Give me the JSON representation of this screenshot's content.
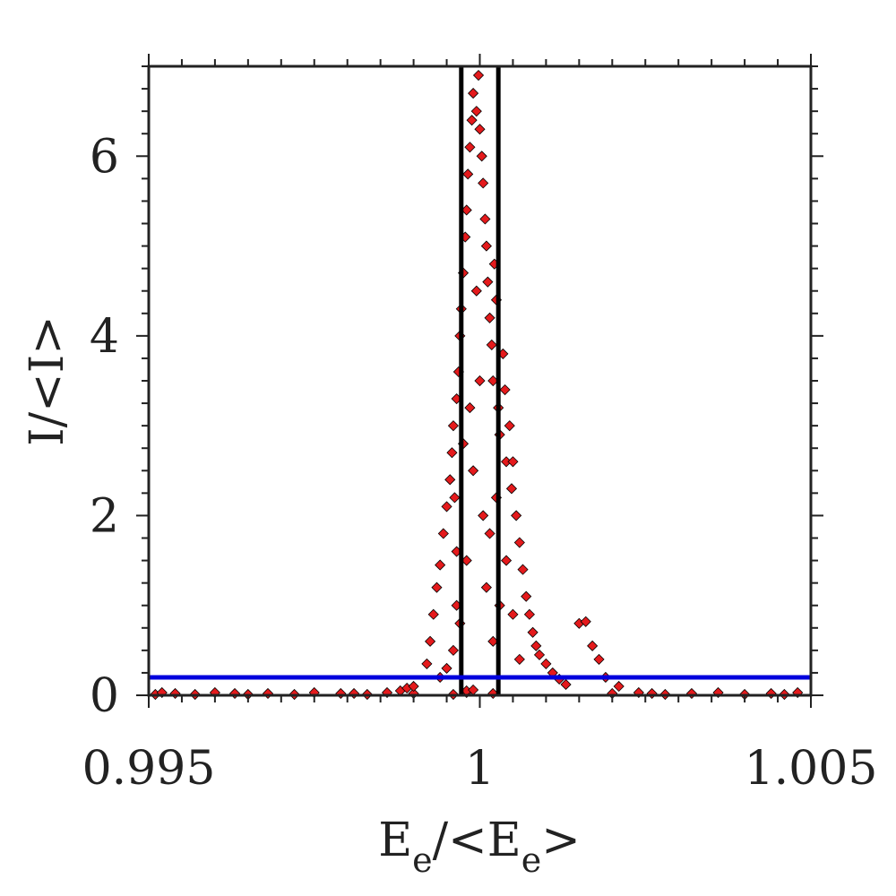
{
  "chart_data": {
    "type": "scatter",
    "title": "",
    "xlabel": {
      "main": "E",
      "sub": "e",
      "mid": "/<E",
      "sub2": "e",
      "end": ">"
    },
    "ylabel": "I/<I>",
    "xlim": [
      0.995,
      1.005
    ],
    "ylim": [
      0,
      7
    ],
    "x_ticks": [
      {
        "value": 0.995,
        "label": "0.995"
      },
      {
        "value": 1.0,
        "label": "1"
      },
      {
        "value": 1.005,
        "label": "1.005"
      }
    ],
    "y_ticks": [
      {
        "value": 0,
        "label": "0"
      },
      {
        "value": 2,
        "label": "2"
      },
      {
        "value": 4,
        "label": "4"
      },
      {
        "value": 6,
        "label": "6"
      }
    ],
    "marker": "diamond",
    "marker_color": "#e41a1c",
    "marker_edge_color": "#000000",
    "points": [
      [
        0.9951,
        0.01
      ],
      [
        0.9954,
        0.02
      ],
      [
        0.9957,
        0.01
      ],
      [
        0.996,
        0.03
      ],
      [
        0.9963,
        0.02
      ],
      [
        0.9968,
        0.02
      ],
      [
        0.9972,
        0.01
      ],
      [
        0.9975,
        0.03
      ],
      [
        0.9979,
        0.02
      ],
      [
        0.9983,
        0.01
      ],
      [
        0.9986,
        0.03
      ],
      [
        0.999,
        0.02
      ],
      [
        0.9996,
        0.01
      ],
      [
        0.9998,
        0.03
      ],
      [
        1.0002,
        0.02
      ],
      [
        0.9998,
        0.05
      ],
      [
        0.9999,
        0.06
      ],
      [
        1.002,
        0.02
      ],
      [
        1.0024,
        0.03
      ],
      [
        1.0028,
        0.01
      ],
      [
        1.0032,
        0.02
      ],
      [
        1.0036,
        0.03
      ],
      [
        1.004,
        0.01
      ],
      [
        1.0044,
        0.02
      ],
      [
        1.0048,
        0.03
      ],
      [
        0.9952,
        0.03
      ],
      [
        0.9965,
        0.01
      ],
      [
        0.9981,
        0.02
      ],
      [
        1.0026,
        0.02
      ],
      [
        1.0046,
        0.01
      ],
      [
        0.9988,
        0.05
      ],
      [
        0.9989,
        0.08
      ],
      [
        0.999,
        0.1
      ],
      [
        0.9992,
        0.35
      ],
      [
        0.99925,
        0.6
      ],
      [
        0.9993,
        0.9
      ],
      [
        0.99935,
        1.2
      ],
      [
        0.9994,
        1.45
      ],
      [
        0.99945,
        1.8
      ],
      [
        0.9995,
        2.1
      ],
      [
        0.99955,
        2.4
      ],
      [
        0.99958,
        2.7
      ],
      [
        0.9996,
        3.0
      ],
      [
        0.99962,
        2.2
      ],
      [
        0.99965,
        1.6
      ],
      [
        0.99965,
        3.3
      ],
      [
        0.99968,
        3.6
      ],
      [
        0.9997,
        4.0
      ],
      [
        0.99972,
        4.3
      ],
      [
        0.99975,
        4.7
      ],
      [
        0.99978,
        5.1
      ],
      [
        0.9998,
        5.4
      ],
      [
        0.99982,
        5.8
      ],
      [
        0.99985,
        6.1
      ],
      [
        0.99988,
        6.4
      ],
      [
        0.9999,
        6.7
      ],
      [
        0.99995,
        6.5
      ],
      [
        0.99998,
        6.9
      ],
      [
        1.0,
        6.3
      ],
      [
        1.00003,
        6.0
      ],
      [
        1.00005,
        5.7
      ],
      [
        1.00008,
        5.3
      ],
      [
        1.0001,
        5.0
      ],
      [
        1.00012,
        4.6
      ],
      [
        1.00015,
        4.2
      ],
      [
        1.00018,
        3.9
      ],
      [
        1.0002,
        3.5
      ],
      [
        1.00022,
        4.8
      ],
      [
        1.00025,
        4.4
      ],
      [
        1.00028,
        3.2
      ],
      [
        1.0003,
        2.9
      ],
      [
        1.00035,
        3.8
      ],
      [
        1.00038,
        3.4
      ],
      [
        1.0004,
        2.6
      ],
      [
        1.00045,
        3.0
      ],
      [
        1.00048,
        2.3
      ],
      [
        1.0005,
        2.6
      ],
      [
        1.00055,
        2.0
      ],
      [
        1.0006,
        1.7
      ],
      [
        1.00065,
        1.4
      ],
      [
        1.0007,
        1.1
      ],
      [
        1.00075,
        0.9
      ],
      [
        1.0008,
        0.7
      ],
      [
        1.00085,
        0.55
      ],
      [
        1.0009,
        0.45
      ],
      [
        1.001,
        0.35
      ],
      [
        1.0011,
        0.25
      ],
      [
        1.0012,
        0.18
      ],
      [
        1.0013,
        0.12
      ],
      [
        1.0015,
        0.8
      ],
      [
        1.0016,
        0.82
      ],
      [
        1.0017,
        0.55
      ],
      [
        1.0018,
        0.4
      ],
      [
        1.0019,
        0.2
      ],
      [
        1.0021,
        0.1
      ],
      [
        0.9998,
        1.5
      ],
      [
        0.9999,
        2.5
      ],
      [
        1.0,
        3.5
      ],
      [
        1.0001,
        1.2
      ],
      [
        0.9997,
        0.8
      ],
      [
        0.9996,
        0.5
      ],
      [
        0.9995,
        0.3
      ],
      [
        0.9994,
        0.2
      ],
      [
        1.0002,
        0.6
      ],
      [
        1.0003,
        1.0
      ],
      [
        1.0004,
        1.5
      ],
      [
        1.0005,
        0.9
      ],
      [
        1.0006,
        0.4
      ],
      [
        0.99995,
        4.5
      ],
      [
        1.00005,
        2.0
      ],
      [
        0.99985,
        3.2
      ],
      [
        1.00015,
        1.8
      ],
      [
        0.99975,
        2.8
      ],
      [
        1.00025,
        2.2
      ],
      [
        0.99965,
        1.0
      ]
    ],
    "vlines": [
      {
        "x": 0.99972,
        "color": "#000000"
      },
      {
        "x": 1.00028,
        "color": "#000000"
      }
    ],
    "hlines": [
      {
        "y": 0.2,
        "color": "#0000dd"
      }
    ],
    "grid": false,
    "legend": "none"
  }
}
